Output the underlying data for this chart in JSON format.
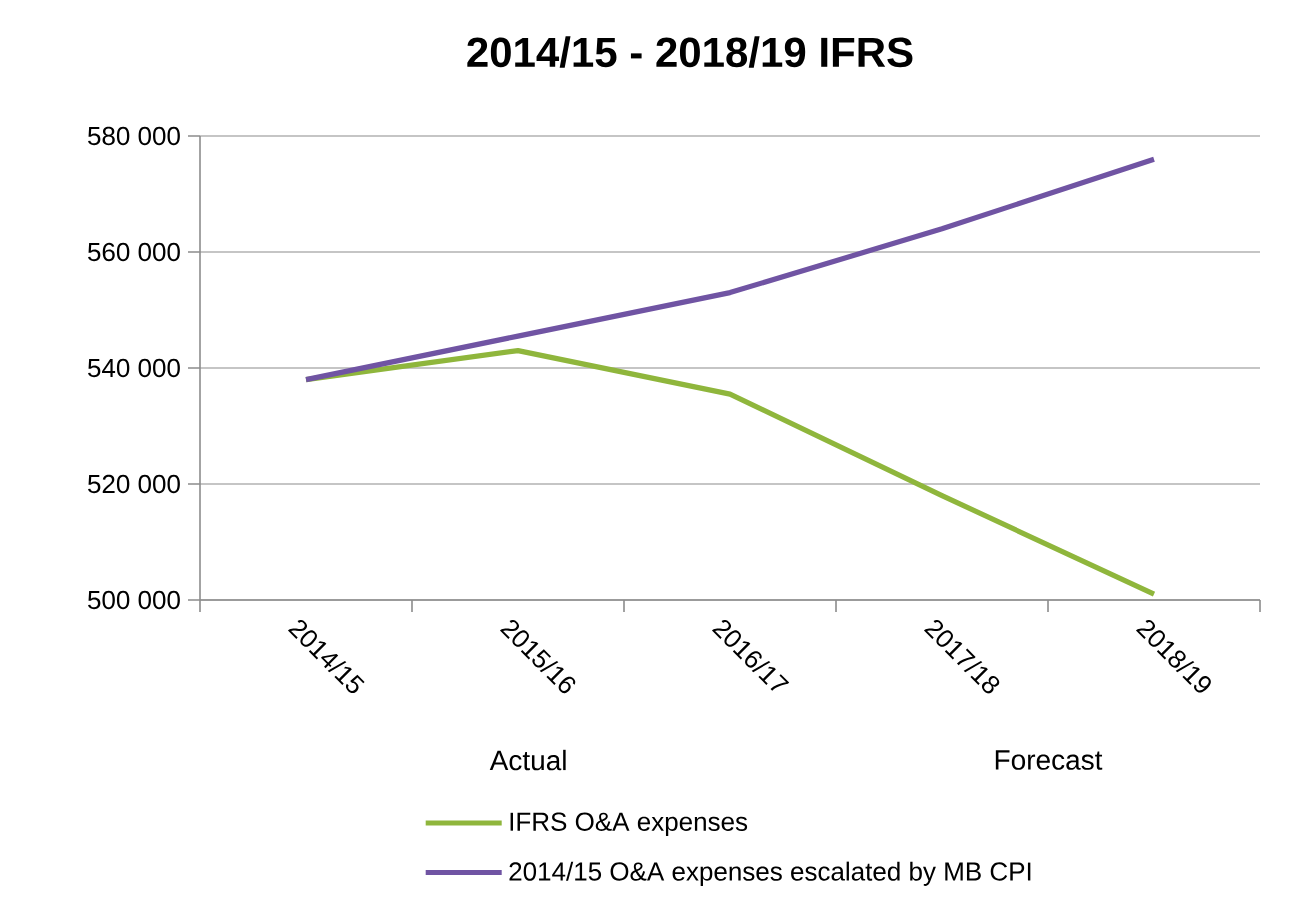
{
  "chart_data": {
    "type": "line",
    "title": "2014/15 - 2018/19 IFRS",
    "categories": [
      "2014/15",
      "2015/16",
      "2016/17",
      "2017/18",
      "2018/19"
    ],
    "series": [
      {
        "name": "IFRS O&A expenses",
        "color": "#8fb63c",
        "values": [
          538000,
          543000,
          535500,
          518000,
          501000
        ]
      },
      {
        "name": "2014/15 O&A expenses escalated by MB CPI",
        "color": "#7054a3",
        "values": [
          538000,
          545500,
          553000,
          564000,
          576000
        ]
      }
    ],
    "ylim": [
      500000,
      580000
    ],
    "yticks": [
      {
        "value": 500000,
        "label": "500 000"
      },
      {
        "value": 520000,
        "label": "520 000"
      },
      {
        "value": 540000,
        "label": "540 000"
      },
      {
        "value": 560000,
        "label": "560 000"
      },
      {
        "value": 580000,
        "label": "580 000"
      }
    ],
    "grid": "y",
    "legend": "bottom",
    "annotations": [
      "Actual",
      "Forecast"
    ]
  }
}
